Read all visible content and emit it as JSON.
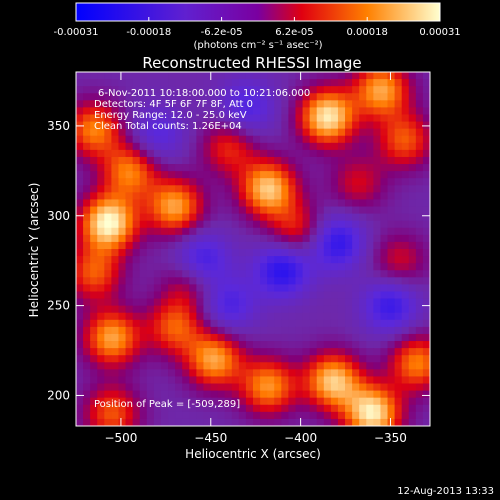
{
  "chart_data": {
    "type": "heatmap",
    "title": "Reconstructed RHESSI Image",
    "xlabel": "Heliocentric X (arcsec)",
    "ylabel": "Heliocentric Y (arcsec)",
    "xlim": [
      -525,
      -328
    ],
    "ylim": [
      183,
      380
    ],
    "x_ticks": [
      -500,
      -450,
      -400,
      -350
    ],
    "y_ticks": [
      200,
      250,
      300,
      350
    ],
    "colorbar": {
      "ticks": [
        "-0.00031",
        "-0.00018",
        "-6.2e-05",
        "6.2e-05",
        "0.00018",
        "0.00031"
      ],
      "unit_label": "(photons cm⁻² s⁻¹ asec⁻²)"
    },
    "annotations": {
      "time": "6-Nov-2011 10:18:00.000 to 10:21:06.000",
      "detectors": "Detectors: 4F 5F 6F 7F 8F, Att 0",
      "energy": "Energy Range: 12.0 - 25.0 keV",
      "clean": "Clean     Total counts: 1.26E+04",
      "peak": "Position of Peak = [-509,289]"
    },
    "footer_date": "12-Aug-2013 13:33",
    "sources": [
      {
        "x": -507,
        "y": 296,
        "amp": 1.0
      },
      {
        "x": -495,
        "y": 325,
        "amp": 0.65
      },
      {
        "x": -470,
        "y": 305,
        "amp": 0.75
      },
      {
        "x": -515,
        "y": 348,
        "amp": 0.65
      },
      {
        "x": -440,
        "y": 338,
        "amp": 0.45
      },
      {
        "x": -418,
        "y": 315,
        "amp": 0.85
      },
      {
        "x": -402,
        "y": 292,
        "amp": 0.45
      },
      {
        "x": -385,
        "y": 355,
        "amp": 0.95
      },
      {
        "x": -355,
        "y": 370,
        "amp": 0.75
      },
      {
        "x": -342,
        "y": 342,
        "amp": 0.55
      },
      {
        "x": -368,
        "y": 318,
        "amp": 0.35
      },
      {
        "x": -515,
        "y": 268,
        "amp": 0.55
      },
      {
        "x": -505,
        "y": 232,
        "amp": 0.75
      },
      {
        "x": -470,
        "y": 238,
        "amp": 0.55
      },
      {
        "x": -448,
        "y": 220,
        "amp": 0.75
      },
      {
        "x": -418,
        "y": 205,
        "amp": 0.7
      },
      {
        "x": -382,
        "y": 208,
        "amp": 0.85
      },
      {
        "x": -360,
        "y": 190,
        "amp": 0.95
      },
      {
        "x": -335,
        "y": 218,
        "amp": 0.65
      },
      {
        "x": -505,
        "y": 190,
        "amp": 0.55
      },
      {
        "x": -462,
        "y": 262,
        "amp": 0.35
      },
      {
        "x": -345,
        "y": 275,
        "amp": 0.35
      },
      {
        "x": -430,
        "y": 360,
        "amp": -0.4
      },
      {
        "x": -455,
        "y": 275,
        "amp": -0.5
      },
      {
        "x": -410,
        "y": 270,
        "amp": -0.6
      },
      {
        "x": -380,
        "y": 285,
        "amp": -0.55
      },
      {
        "x": -350,
        "y": 250,
        "amp": -0.5
      },
      {
        "x": -480,
        "y": 345,
        "amp": -0.35
      },
      {
        "x": -440,
        "y": 250,
        "amp": -0.4
      }
    ],
    "colors": {
      "background": "#000000",
      "colormap": [
        "#0000ff",
        "#6a2ad8",
        "#7030a0",
        "#d01010",
        "#ff7000",
        "#ffffff"
      ]
    }
  }
}
